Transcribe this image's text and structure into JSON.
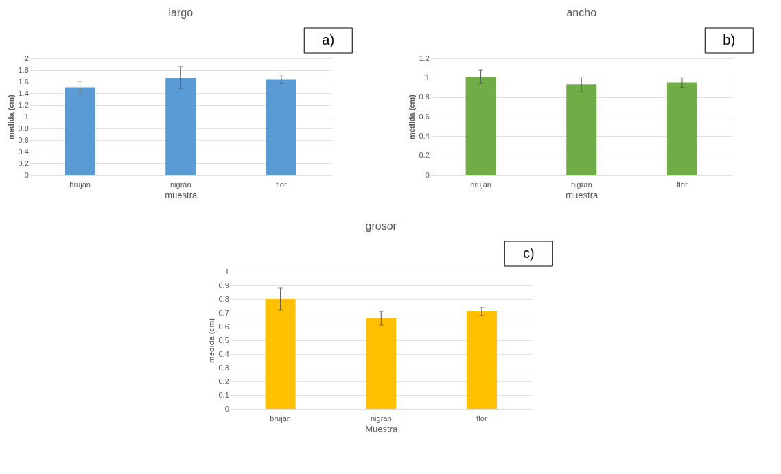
{
  "chart_data": [
    {
      "type": "bar",
      "title": "largo",
      "xlabel": "muestra",
      "ylabel": "medida (cm)",
      "categories": [
        "brujan",
        "nigran",
        "flor"
      ],
      "values": [
        1.5,
        1.67,
        1.64
      ],
      "errors": [
        0.1,
        0.19,
        0.07
      ],
      "color": "#5b9bd5",
      "ylim": [
        0,
        2
      ],
      "yticks": [
        0,
        0.2,
        0.4,
        0.6,
        0.8,
        1,
        1.2,
        1.4,
        1.6,
        1.8,
        2
      ],
      "grid": "y",
      "annotations": [
        "a)"
      ]
    },
    {
      "type": "bar",
      "title": "ancho",
      "xlabel": "muestra",
      "ylabel": "medida (cm)",
      "categories": [
        "brujan",
        "nigran",
        "flor"
      ],
      "values": [
        1.01,
        0.93,
        0.95
      ],
      "errors": [
        0.07,
        0.07,
        0.05
      ],
      "color": "#70ad47",
      "ylim": [
        0,
        1.2
      ],
      "yticks": [
        0,
        0.2,
        0.4,
        0.6,
        0.8,
        1,
        1.2
      ],
      "grid": "y",
      "annotations": [
        "b)"
      ]
    },
    {
      "type": "bar",
      "title": "grosor",
      "xlabel": "Muestra",
      "ylabel": "medida (cm)",
      "categories": [
        "brujan",
        "nigran",
        "flor"
      ],
      "values": [
        0.8,
        0.66,
        0.71
      ],
      "errors": [
        0.08,
        0.05,
        0.03
      ],
      "color": "#ffc000",
      "ylim": [
        0,
        1
      ],
      "yticks": [
        0,
        0.1,
        0.2,
        0.3,
        0.4,
        0.5,
        0.6,
        0.7,
        0.8,
        0.9,
        1
      ],
      "grid": "y",
      "annotations": [
        "c)"
      ]
    }
  ]
}
